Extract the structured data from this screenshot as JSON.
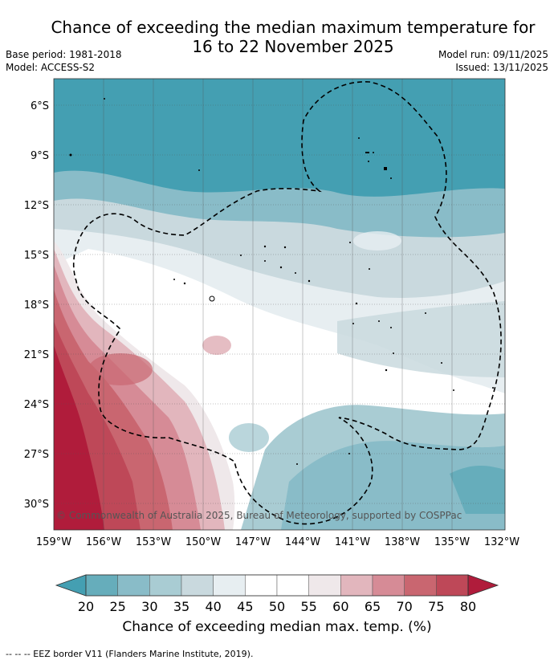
{
  "title_line1": "Chance of exceeding the median maximum temperature for",
  "title_line2": "16 to 22 November 2025",
  "base_period": "Base period: 1981-2018",
  "model": "Model: ACCESS-S2",
  "model_run": "Model run: 09/11/2025",
  "issued": "Issued: 13/11/2025",
  "lat_labels": [
    "6°S",
    "9°S",
    "12°S",
    "15°S",
    "18°S",
    "21°S",
    "24°S",
    "27°S",
    "30°S"
  ],
  "lon_labels": [
    "159°W",
    "156°W",
    "153°W",
    "150°W",
    "147°W",
    "144°W",
    "141°W",
    "138°W",
    "135°W",
    "132°W"
  ],
  "copyright": "© Commonwealth of Australia 2025, Bureau of Meteorology, supported by COSPPac",
  "colorbar": {
    "ticks": [
      "20",
      "25",
      "30",
      "35",
      "40",
      "45",
      "50",
      "55",
      "60",
      "65",
      "70",
      "75",
      "80"
    ],
    "colors": [
      "#66adbb",
      "#89bcc8",
      "#a9ccd3",
      "#c9d9de",
      "#e7eef1",
      "#ffffff",
      "#ffffff",
      "#efe8ea",
      "#e2b6bd",
      "#d68b96",
      "#c96670",
      "#be4858"
    ],
    "low_color": "#449fb2",
    "high_color": "#b01c3b",
    "label": "Chance of exceeding median max. temp. (%)"
  },
  "footer": "--  --  -- EEZ border V11 (Flanders Marine Institute, 2019)."
}
